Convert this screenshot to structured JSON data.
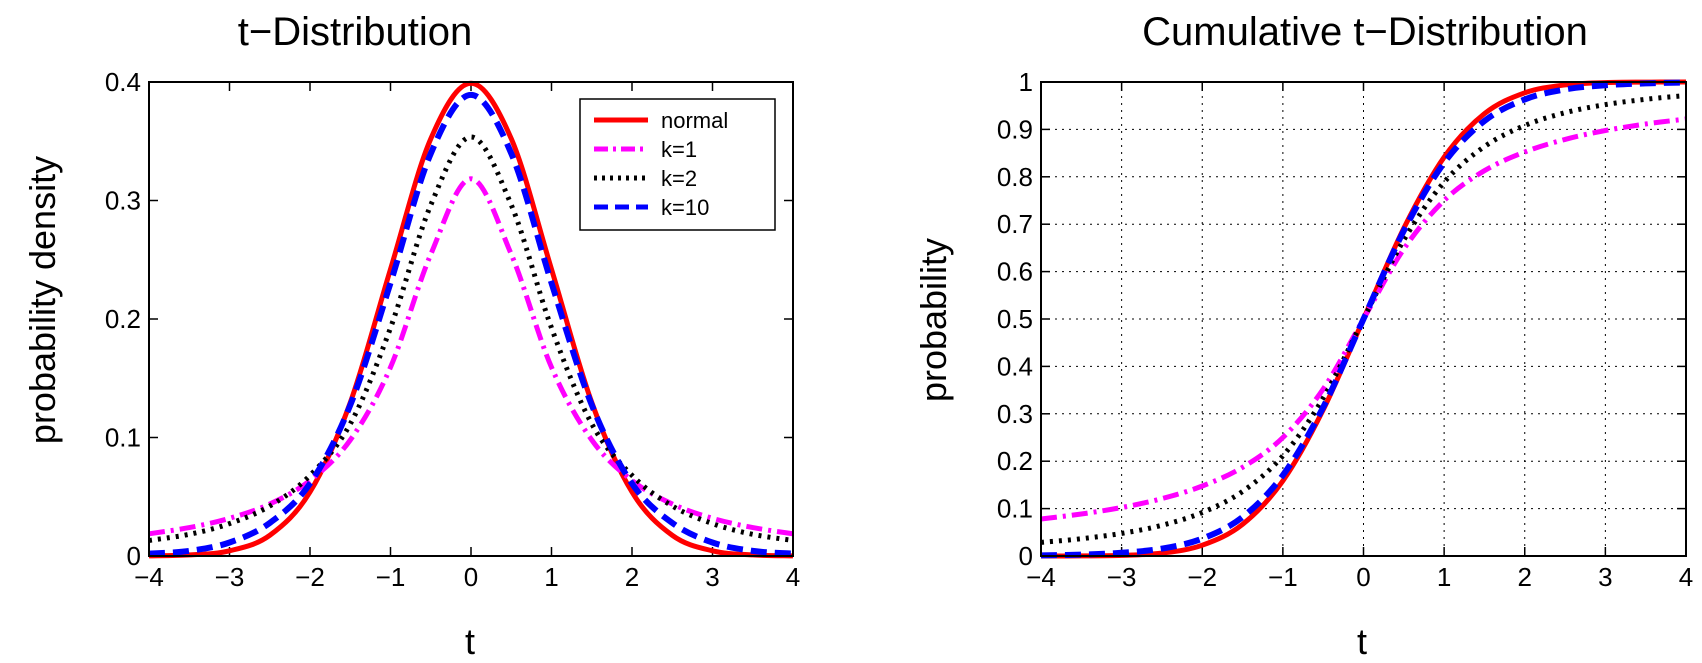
{
  "chart_data": [
    {
      "type": "line",
      "title": "t−Distribution",
      "xlabel": "t",
      "ylabel": "probability density",
      "xlim": [
        -4,
        4
      ],
      "ylim": [
        0,
        0.4
      ],
      "xticks": [
        "−4",
        "−3",
        "−2",
        "−1",
        "0",
        "1",
        "2",
        "3",
        "4"
      ],
      "yticks": [
        "0",
        "0.1",
        "0.2",
        "0.3",
        "0.4"
      ],
      "grid": false,
      "legend": "top-right",
      "x": [
        -4,
        -3.5,
        -3,
        -2.5,
        -2,
        -1.5,
        -1,
        -0.5,
        0,
        0.5,
        1,
        1.5,
        2,
        2.5,
        3,
        3.5,
        4
      ],
      "series": [
        {
          "name": "normal",
          "color": "#ff0000",
          "style": "solid",
          "values": [
            0.0001,
            0.0009,
            0.0044,
            0.0175,
            0.054,
            0.1295,
            0.242,
            0.3521,
            0.3989,
            0.3521,
            0.242,
            0.1295,
            0.054,
            0.0175,
            0.0044,
            0.0009,
            0.0001
          ]
        },
        {
          "name": "k=1",
          "color": "#ff00ff",
          "style": "dashdot",
          "values": [
            0.0187,
            0.024,
            0.0318,
            0.0439,
            0.0637,
            0.0979,
            0.1592,
            0.2546,
            0.3183,
            0.2546,
            0.1592,
            0.0979,
            0.0637,
            0.0439,
            0.0318,
            0.024,
            0.0187
          ]
        },
        {
          "name": "k=2",
          "color": "#000000",
          "style": "dotted",
          "values": [
            0.0131,
            0.0183,
            0.0273,
            0.0422,
            0.068,
            0.1115,
            0.1925,
            0.2962,
            0.3536,
            0.2962,
            0.1925,
            0.1115,
            0.068,
            0.0422,
            0.0273,
            0.0183,
            0.0131
          ]
        },
        {
          "name": "k=10",
          "color": "#0000ff",
          "style": "dashed",
          "values": [
            0.002,
            0.0043,
            0.0114,
            0.0279,
            0.0611,
            0.1274,
            0.2304,
            0.3397,
            0.3891,
            0.3397,
            0.2304,
            0.1274,
            0.0611,
            0.0279,
            0.0114,
            0.0043,
            0.002
          ]
        }
      ]
    },
    {
      "type": "line",
      "title": "Cumulative t−Distribution",
      "xlabel": "t",
      "ylabel": "probability",
      "xlim": [
        -4,
        4
      ],
      "ylim": [
        0,
        1
      ],
      "xticks": [
        "−4",
        "−3",
        "−2",
        "−1",
        "0",
        "1",
        "2",
        "3",
        "4"
      ],
      "yticks": [
        "0",
        "0.1",
        "0.2",
        "0.3",
        "0.4",
        "0.5",
        "0.6",
        "0.7",
        "0.8",
        "0.9",
        "1"
      ],
      "grid": true,
      "legend": "none",
      "x": [
        -4,
        -3.5,
        -3,
        -2.5,
        -2,
        -1.5,
        -1,
        -0.5,
        0,
        0.5,
        1,
        1.5,
        2,
        2.5,
        3,
        3.5,
        4
      ],
      "series": [
        {
          "name": "normal",
          "color": "#ff0000",
          "style": "solid",
          "values": [
            0.0,
            0.0002,
            0.0013,
            0.0062,
            0.0228,
            0.0668,
            0.1587,
            0.3085,
            0.5,
            0.6915,
            0.8413,
            0.9332,
            0.9772,
            0.9938,
            0.9987,
            0.9998,
            1.0
          ]
        },
        {
          "name": "k=1",
          "color": "#ff00ff",
          "style": "dashdot",
          "values": [
            0.078,
            0.0886,
            0.1024,
            0.1211,
            0.1476,
            0.1872,
            0.25,
            0.3524,
            0.5,
            0.6476,
            0.75,
            0.8128,
            0.8524,
            0.8789,
            0.8976,
            0.9114,
            0.922
          ]
        },
        {
          "name": "k=2",
          "color": "#000000",
          "style": "dotted",
          "values": [
            0.0286,
            0.0364,
            0.0477,
            0.0648,
            0.0918,
            0.1362,
            0.2113,
            0.3333,
            0.5,
            0.6667,
            0.7887,
            0.8638,
            0.9082,
            0.9352,
            0.9523,
            0.9636,
            0.9714
          ]
        },
        {
          "name": "k=10",
          "color": "#0000ff",
          "style": "dashed",
          "values": [
            0.0013,
            0.0029,
            0.0067,
            0.0157,
            0.0367,
            0.0823,
            0.1704,
            0.3139,
            0.5,
            0.6861,
            0.8296,
            0.9177,
            0.9633,
            0.9843,
            0.9933,
            0.9971,
            0.9987
          ]
        }
      ]
    }
  ]
}
